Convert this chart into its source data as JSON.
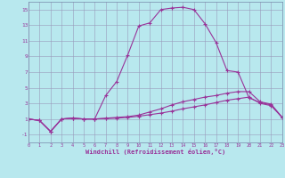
{
  "xlabel": "Windchill (Refroidissement éolien,°C)",
  "background_color": "#b8e8ee",
  "grid_color": "#9999bb",
  "line_color": "#993399",
  "xlim": [
    0,
    23
  ],
  "ylim": [
    -2,
    16
  ],
  "xticks": [
    0,
    1,
    2,
    3,
    4,
    5,
    6,
    7,
    8,
    9,
    10,
    11,
    12,
    13,
    14,
    15,
    16,
    17,
    18,
    19,
    20,
    21,
    22,
    23
  ],
  "yticks": [
    -1,
    1,
    3,
    5,
    7,
    9,
    11,
    13,
    15
  ],
  "line1_x": [
    0,
    1,
    2,
    3,
    4,
    5,
    6,
    7,
    8,
    9,
    10,
    11,
    12,
    13,
    14,
    15,
    16,
    17,
    18,
    19,
    20,
    21,
    22,
    23
  ],
  "line1_y": [
    1.0,
    0.8,
    -0.6,
    1.0,
    1.1,
    1.0,
    1.0,
    4.0,
    5.8,
    9.2,
    12.9,
    13.3,
    15.0,
    15.2,
    15.3,
    15.0,
    13.2,
    10.8,
    7.2,
    7.0,
    3.7,
    3.1,
    2.8,
    1.2
  ],
  "line2_x": [
    0,
    1,
    2,
    3,
    4,
    5,
    6,
    7,
    8,
    9,
    10,
    11,
    12,
    13,
    14,
    15,
    16,
    17,
    18,
    19,
    20,
    21,
    22,
    23
  ],
  "line2_y": [
    1.0,
    0.8,
    -0.6,
    1.0,
    1.1,
    1.0,
    1.0,
    1.1,
    1.2,
    1.3,
    1.5,
    1.9,
    2.3,
    2.8,
    3.2,
    3.5,
    3.8,
    4.0,
    4.3,
    4.5,
    4.5,
    3.2,
    2.9,
    1.2
  ],
  "line3_x": [
    0,
    1,
    2,
    3,
    4,
    5,
    6,
    7,
    8,
    9,
    10,
    11,
    12,
    13,
    14,
    15,
    16,
    17,
    18,
    19,
    20,
    21,
    22,
    23
  ],
  "line3_y": [
    1.0,
    0.8,
    -0.6,
    1.0,
    1.1,
    1.0,
    1.0,
    1.05,
    1.1,
    1.2,
    1.35,
    1.55,
    1.75,
    2.0,
    2.3,
    2.55,
    2.8,
    3.1,
    3.4,
    3.6,
    3.8,
    3.0,
    2.7,
    1.2
  ]
}
